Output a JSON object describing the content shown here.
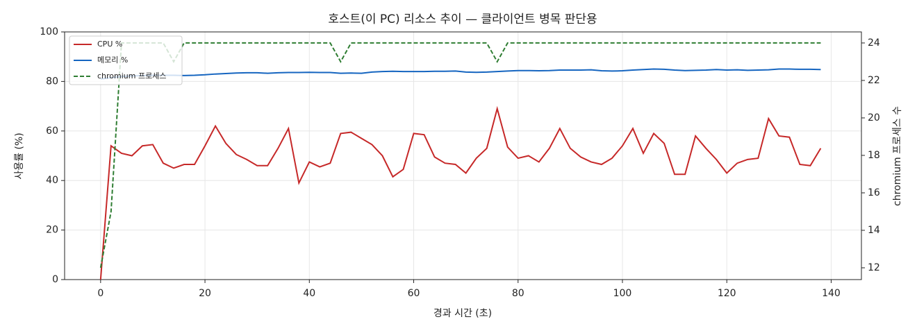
{
  "chart_data": {
    "type": "line",
    "title": "호스트(이 PC) 리소스 추이 — 클라이언트 병목 판단용",
    "x_label": "경과 시간 (초)",
    "y_label": "사용률 (%)",
    "y2_label": "chromium 프로세스 수",
    "x": [
      0,
      2,
      4,
      6,
      8,
      10,
      12,
      14,
      16,
      18,
      20,
      22,
      24,
      26,
      28,
      30,
      32,
      34,
      36,
      38,
      40,
      42,
      44,
      46,
      48,
      50,
      52,
      54,
      56,
      58,
      60,
      62,
      64,
      66,
      68,
      70,
      72,
      74,
      76,
      78,
      80,
      82,
      84,
      86,
      88,
      90,
      92,
      94,
      96,
      98,
      100,
      102,
      104,
      106,
      108,
      110,
      112,
      114,
      116,
      118,
      120,
      122,
      124,
      126,
      128,
      130,
      132,
      134,
      136,
      138
    ],
    "series": [
      {
        "name": "CPU %",
        "color": "#c62828",
        "linestyle": "solid",
        "axis": "y",
        "values": [
          0,
          54,
          51,
          50,
          54,
          54.5,
          47,
          45,
          46.5,
          46.5,
          54,
          62,
          55,
          50.5,
          48.5,
          46,
          46,
          53,
          61,
          39,
          47.5,
          45.5,
          47,
          59,
          59.5,
          57,
          54.5,
          50,
          41.5,
          44.5,
          59,
          58.5,
          49.5,
          47,
          46.5,
          43,
          49,
          53,
          69,
          53.5,
          49,
          50,
          47.5,
          53,
          61,
          53,
          49.5,
          47.5,
          46.5,
          49,
          54,
          61,
          51,
          59,
          55,
          42.5,
          42.5,
          58,
          53,
          48.5,
          43,
          47,
          48.5,
          49,
          65,
          58,
          57.5,
          46.5,
          46,
          53
        ]
      },
      {
        "name": "메모리 %",
        "color": "#1565c0",
        "linestyle": "solid",
        "axis": "y",
        "values": [
          81,
          81.5,
          82,
          82.2,
          82.4,
          82.5,
          82.5,
          82.5,
          82.4,
          82.5,
          82.7,
          83,
          83.2,
          83.4,
          83.5,
          83.5,
          83.3,
          83.5,
          83.6,
          83.6,
          83.7,
          83.6,
          83.6,
          83.3,
          83.4,
          83.3,
          83.8,
          84,
          84.1,
          84,
          84,
          84,
          84.1,
          84.1,
          84.2,
          83.8,
          83.7,
          83.8,
          84,
          84.2,
          84.4,
          84.4,
          84.3,
          84.4,
          84.6,
          84.6,
          84.6,
          84.7,
          84.3,
          84.2,
          84.3,
          84.6,
          84.8,
          85,
          84.9,
          84.6,
          84.4,
          84.5,
          84.6,
          84.8,
          84.6,
          84.7,
          84.5,
          84.6,
          84.7,
          85,
          85,
          84.9,
          84.9,
          84.8
        ]
      },
      {
        "name": "chromium 프로세스",
        "color": "#2e7d32",
        "linestyle": "dashed",
        "axis": "y2",
        "values": [
          12,
          15,
          24,
          24,
          24,
          24,
          24,
          23,
          24,
          24,
          24,
          24,
          24,
          24,
          24,
          24,
          24,
          24,
          24,
          24,
          24,
          24,
          24,
          23,
          24,
          24,
          24,
          24,
          24,
          24,
          24,
          24,
          24,
          24,
          24,
          24,
          24,
          24,
          23,
          24,
          24,
          24,
          24,
          24,
          24,
          24,
          24,
          24,
          24,
          24,
          24,
          24,
          24,
          24,
          24,
          24,
          24,
          24,
          24,
          24,
          24,
          24,
          24,
          24,
          24,
          24,
          24,
          24,
          24,
          24
        ]
      }
    ],
    "xlim": [
      -6.9,
      145.8
    ],
    "xticks": [
      0,
      20,
      40,
      60,
      80,
      100,
      120,
      140
    ],
    "ylim": [
      0,
      100
    ],
    "yticks": [
      0,
      20,
      40,
      60,
      80,
      100
    ],
    "y2lim": [
      11.37,
      24.59
    ],
    "y2ticks": [
      12,
      14,
      16,
      18,
      20,
      22,
      24
    ],
    "grid": true,
    "legend": "upper left"
  }
}
